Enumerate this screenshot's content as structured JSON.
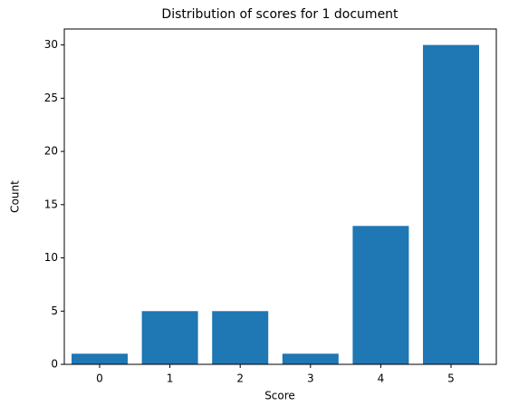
{
  "chart_data": {
    "type": "bar",
    "title": "Distribution of scores for 1 document",
    "x_label": "Score",
    "y_label": "Count",
    "categories": [
      "0",
      "1",
      "2",
      "3",
      "4",
      "5"
    ],
    "values": [
      1,
      5,
      5,
      1,
      13,
      30
    ],
    "color": "#1f77b4",
    "ylim": [
      0,
      31.5
    ],
    "yticks": [
      0,
      5,
      10,
      15,
      20,
      25,
      30
    ],
    "grid": false
  }
}
